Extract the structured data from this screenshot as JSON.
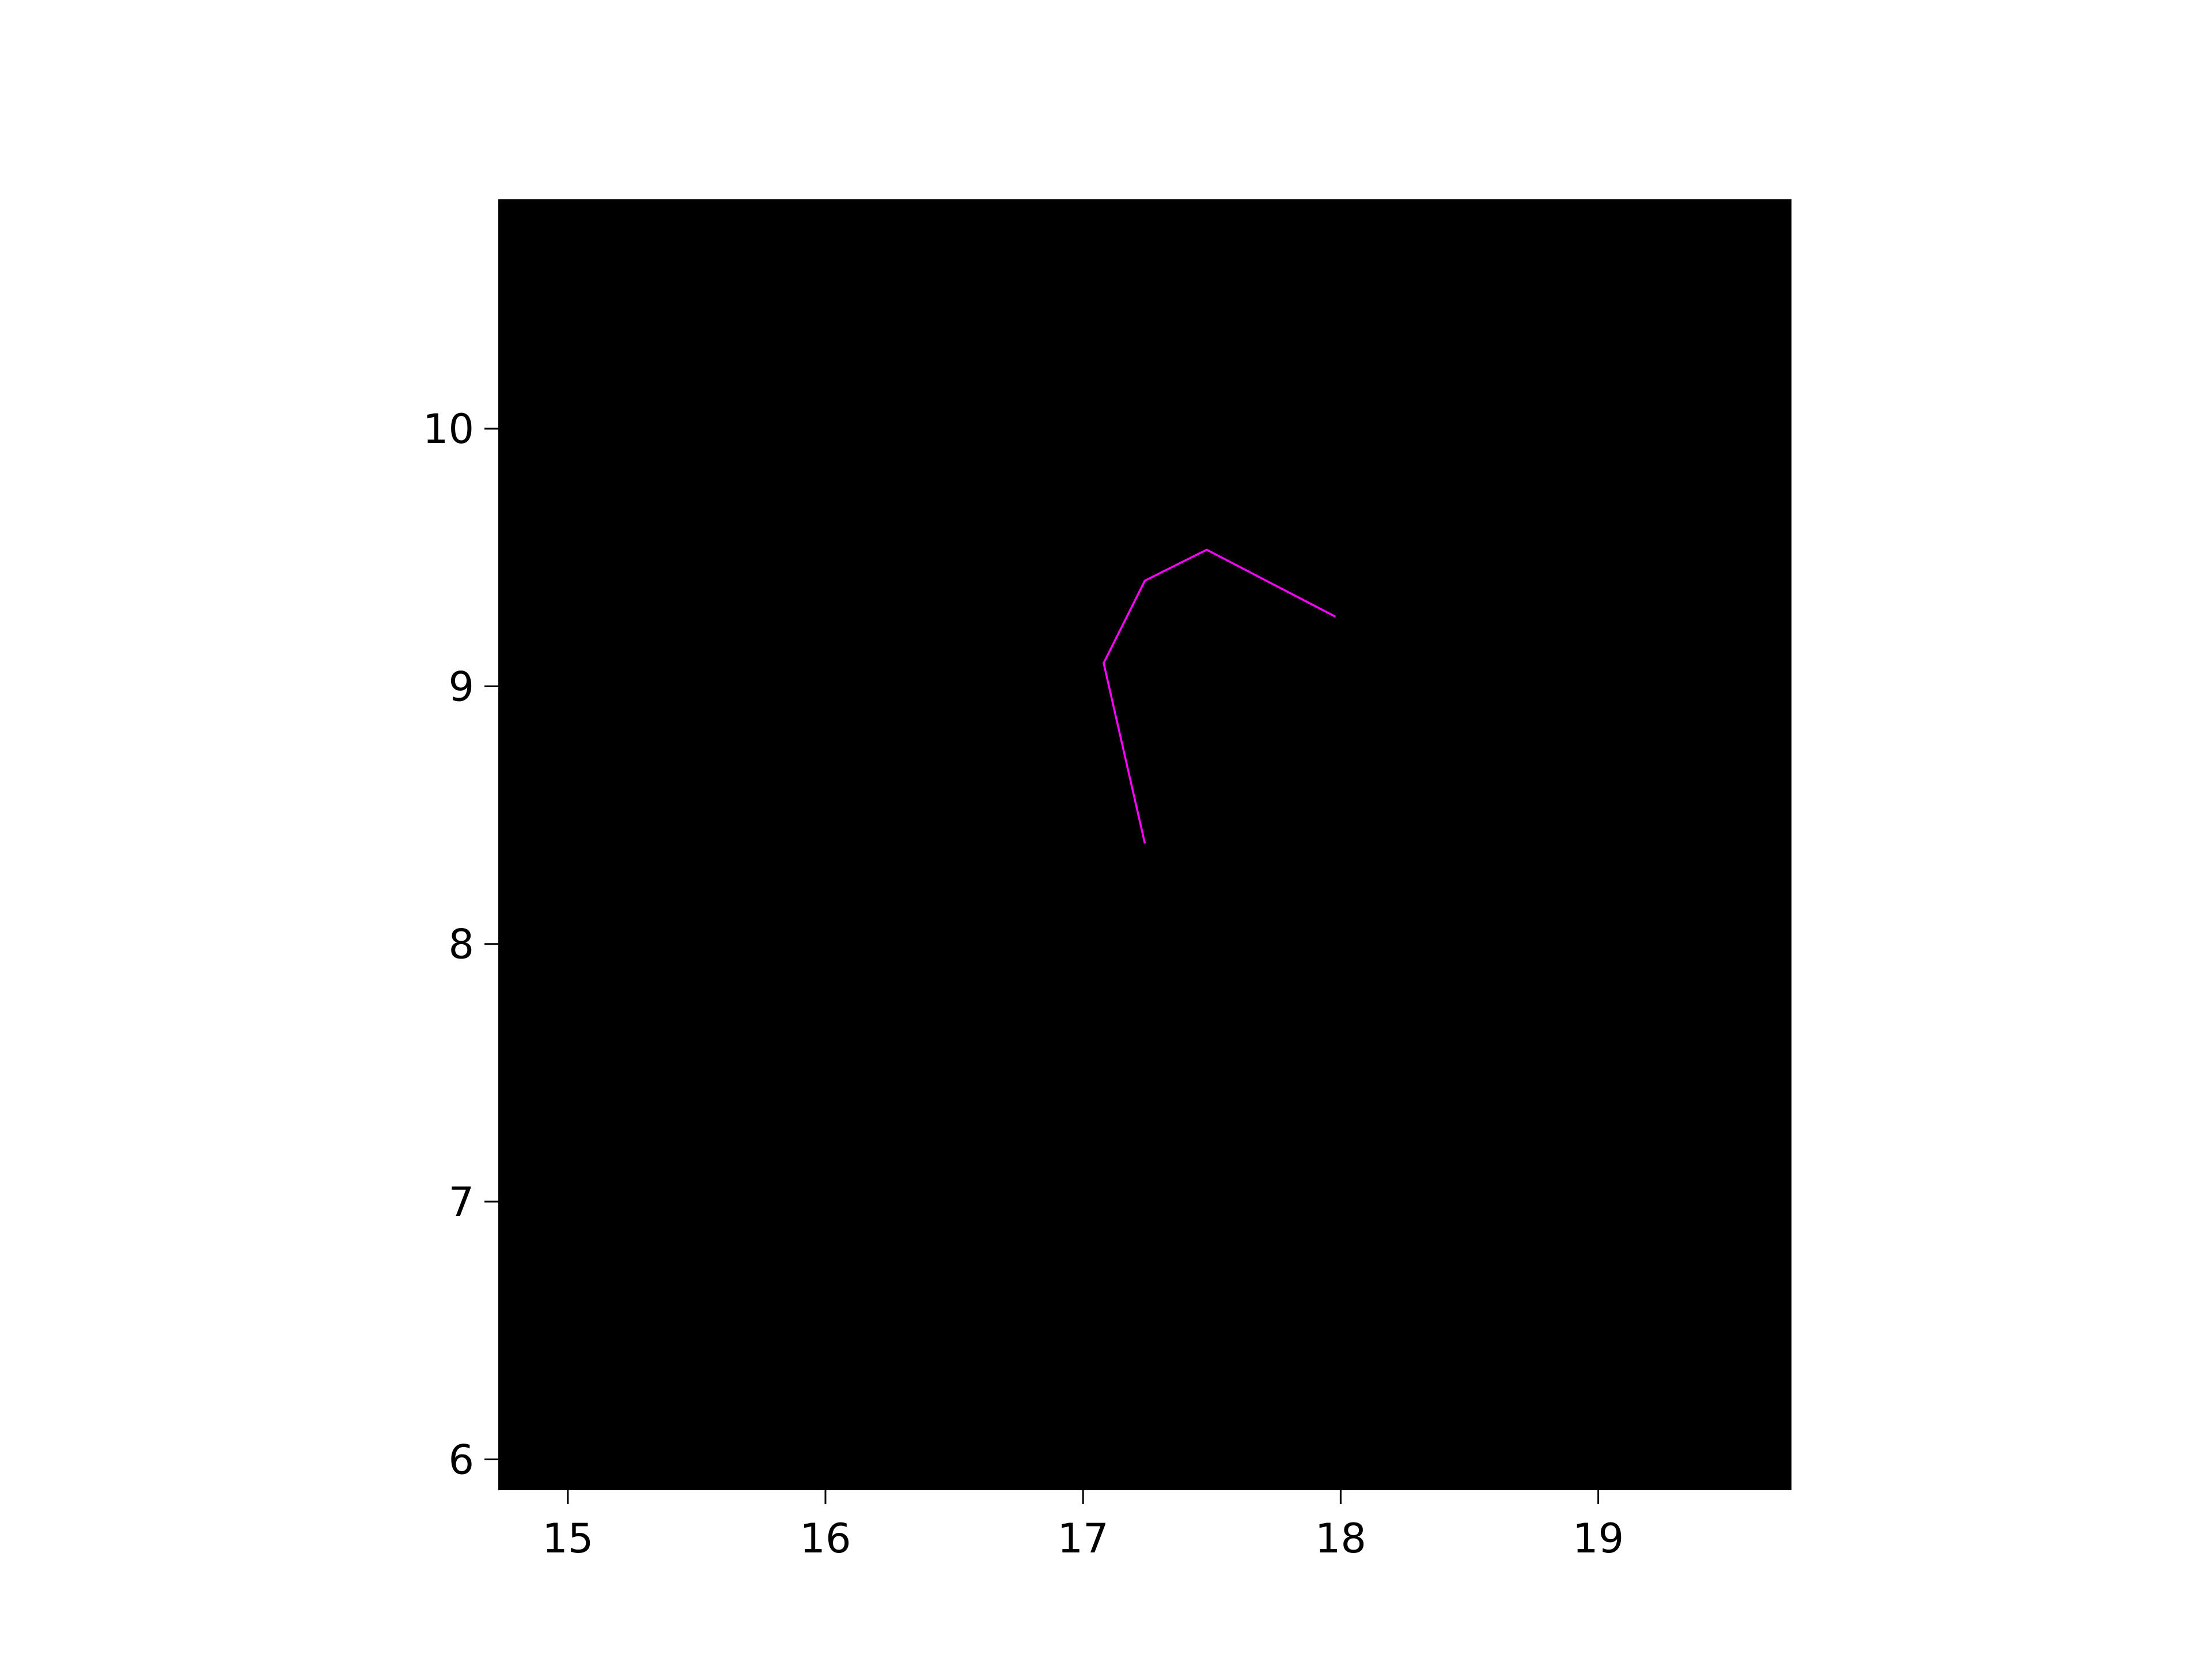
{
  "chart_data": {
    "type": "line",
    "title": "",
    "xlabel": "",
    "ylabel": "",
    "xlim": [
      14.73,
      19.75
    ],
    "ylim": [
      5.88,
      10.89
    ],
    "xticks": [
      15,
      16,
      17,
      18,
      19
    ],
    "yticks": [
      6,
      7,
      8,
      9,
      10
    ],
    "grid": false,
    "legend": "none",
    "colors": {
      "background": "#000000",
      "line": "#ff00ff",
      "figure": "#ffffff"
    },
    "series": [
      {
        "x": [
          17.24,
          17.08,
          17.24,
          17.48,
          17.98
        ],
        "y": [
          8.39,
          9.09,
          9.41,
          9.53,
          9.27
        ]
      }
    ]
  }
}
